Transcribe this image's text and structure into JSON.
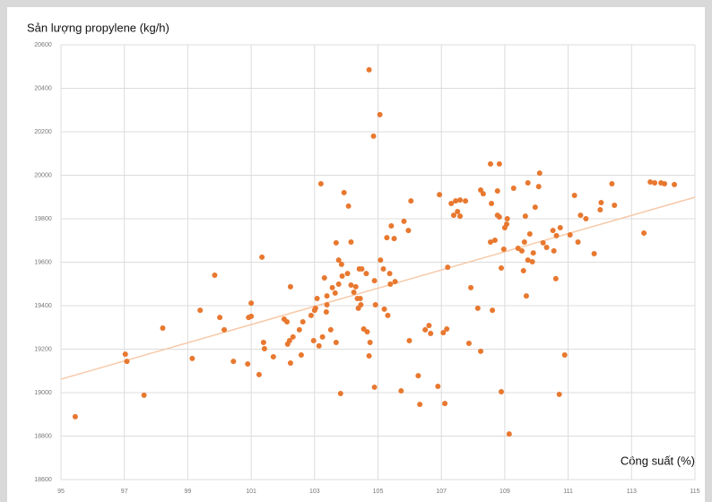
{
  "chart_data": {
    "type": "scatter",
    "y_label": "Sản lượng propylene (kg/h)",
    "x_label": "Công suất (%)",
    "color": "#e8782f",
    "x": [
      95.45,
      97.03,
      97.08,
      97.62,
      98.21,
      99.14,
      99.39,
      99.85,
      100.01,
      100.15,
      100.44,
      100.89,
      100.92,
      101.0,
      101.0,
      101.25,
      101.34,
      101.39,
      101.42,
      101.7,
      102.04,
      102.13,
      102.15,
      102.21,
      102.24,
      102.24,
      102.32,
      102.52,
      102.58,
      102.63,
      102.89,
      102.97,
      103.0,
      103.03,
      103.08,
      103.14,
      103.2,
      103.25,
      103.31,
      103.37,
      103.39,
      103.39,
      103.51,
      103.56,
      103.65,
      103.68,
      103.68,
      103.76,
      103.76,
      103.82,
      103.85,
      103.87,
      103.93,
      104.04,
      104.07,
      104.15,
      104.15,
      104.24,
      104.3,
      104.35,
      104.38,
      104.41,
      104.44,
      104.46,
      104.49,
      104.55,
      104.63,
      104.66,
      104.72,
      104.72,
      104.75,
      104.86,
      104.89,
      104.89,
      104.92,
      105.06,
      105.08,
      105.17,
      105.2,
      105.28,
      105.31,
      105.37,
      105.39,
      105.42,
      105.51,
      105.54,
      105.73,
      105.82,
      105.96,
      105.99,
      106.04,
      106.27,
      106.32,
      106.49,
      106.61,
      106.66,
      106.89,
      106.94,
      107.06,
      107.11,
      107.17,
      107.2,
      107.31,
      107.39,
      107.45,
      107.51,
      107.59,
      107.59,
      107.76,
      107.87,
      107.93,
      108.15,
      108.24,
      108.24,
      108.32,
      108.55,
      108.58,
      108.55,
      108.61,
      108.69,
      108.77,
      108.77,
      108.83,
      108.83,
      108.89,
      108.89,
      108.97,
      109.0,
      109.06,
      109.08,
      109.14,
      109.28,
      109.42,
      109.54,
      109.59,
      109.62,
      109.65,
      109.68,
      109.73,
      109.73,
      109.79,
      109.87,
      109.9,
      109.96,
      110.07,
      110.1,
      110.21,
      110.32,
      110.52,
      110.55,
      110.61,
      110.63,
      110.72,
      110.75,
      110.89,
      111.06,
      111.2,
      111.31,
      111.39,
      111.56,
      111.82,
      112.01,
      112.04,
      112.38,
      112.46,
      113.39,
      113.59,
      113.73,
      113.93,
      114.04,
      114.35
    ],
    "values": [
      18889,
      19177,
      19144,
      18988,
      19297,
      19157,
      19379,
      19540,
      19346,
      19289,
      19144,
      19132,
      19346,
      19351,
      19412,
      19083,
      19623,
      19231,
      19202,
      19165,
      19338,
      19326,
      19223,
      19239,
      19487,
      19136,
      19256,
      19289,
      19173,
      19326,
      19355,
      19239,
      19379,
      19388,
      19433,
      19215,
      19961,
      19256,
      19528,
      19371,
      19404,
      19445,
      19289,
      19483,
      19458,
      19689,
      19231,
      19610,
      19499,
      18996,
      19590,
      19536,
      19920,
      19548,
      19858,
      19495,
      19693,
      19462,
      19487,
      19433,
      19388,
      19569,
      19433,
      19404,
      19569,
      19293,
      19548,
      19280,
      20485,
      19169,
      19231,
      20180,
      19025,
      19515,
      19404,
      20279,
      19610,
      19569,
      19384,
      19713,
      19355,
      19548,
      19499,
      19767,
      19709,
      19511,
      19008,
      19788,
      19746,
      19239,
      19882,
      19078,
      18946,
      19289,
      19309,
      19272,
      19029,
      19911,
      19276,
      18950,
      19293,
      19577,
      19870,
      19816,
      19882,
      19833,
      19812,
      19886,
      19882,
      19227,
      19483,
      19388,
      19190,
      19932,
      19915,
      20052,
      19870,
      19693,
      19379,
      19701,
      19816,
      19928,
      20052,
      19808,
      19004,
      19573,
      19660,
      19759,
      19775,
      19800,
      18810,
      19940,
      19664,
      19652,
      19561,
      19693,
      19812,
      19445,
      19610,
      19965,
      19730,
      19602,
      19643,
      19853,
      19948,
      20010,
      19689,
      19668,
      19746,
      19652,
      19524,
      19722,
      18992,
      19759,
      19173,
      19726,
      19907,
      19693,
      19816,
      19800,
      19639,
      19841,
      19874,
      19961,
      19862,
      19734,
      19969,
      19965,
      19965,
      19961,
      19957
    ],
    "trendline": {
      "x": [
        95,
        115
      ],
      "values": [
        19062,
        19899
      ],
      "color": "#f7c9a8"
    },
    "xlim": [
      95,
      115
    ],
    "xticks": [
      95,
      97,
      99,
      101,
      103,
      105,
      107,
      109,
      111,
      113,
      115
    ],
    "ylim": [
      18600,
      20600
    ],
    "yticks": [
      18600,
      18800,
      19000,
      19200,
      19400,
      19600,
      19800,
      20000,
      20200,
      20400,
      20600
    ],
    "grid": true
  }
}
